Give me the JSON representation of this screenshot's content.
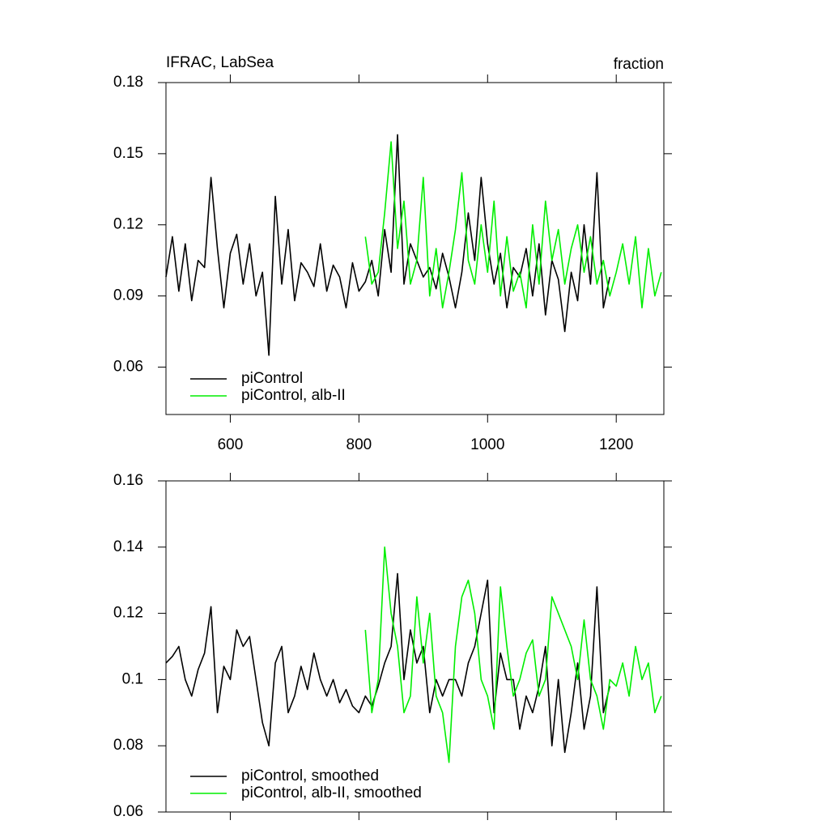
{
  "chart_data": [
    {
      "type": "line",
      "title": "IFRAC, LabSea",
      "units": "fraction",
      "xlim": [
        500,
        1274
      ],
      "xticks": [
        600,
        800,
        1000,
        1200
      ],
      "xtick_labels": true,
      "ylim": [
        0.04,
        0.18
      ],
      "yticks": [
        0.06,
        0.09,
        0.12,
        0.15,
        0.18
      ],
      "legend": "lower left",
      "series": [
        {
          "name": "piControl",
          "color": "#000000",
          "x": [
            500,
            510,
            520,
            530,
            540,
            550,
            560,
            570,
            580,
            590,
            600,
            610,
            620,
            630,
            640,
            650,
            660,
            670,
            680,
            690,
            700,
            710,
            720,
            730,
            740,
            750,
            760,
            770,
            780,
            790,
            800,
            810,
            820,
            830,
            840,
            850,
            860,
            870,
            880,
            890,
            900,
            910,
            920,
            930,
            940,
            950,
            960,
            970,
            980,
            990,
            1000,
            1010,
            1020,
            1030,
            1040,
            1050,
            1060,
            1070,
            1080,
            1090,
            1100,
            1110,
            1120,
            1130,
            1140,
            1150,
            1160,
            1170,
            1180,
            1190
          ],
          "values": [
            0.098,
            0.115,
            0.092,
            0.112,
            0.088,
            0.105,
            0.102,
            0.14,
            0.11,
            0.085,
            0.108,
            0.116,
            0.095,
            0.112,
            0.09,
            0.1,
            0.065,
            0.132,
            0.095,
            0.118,
            0.088,
            0.104,
            0.1,
            0.094,
            0.112,
            0.092,
            0.103,
            0.098,
            0.085,
            0.104,
            0.092,
            0.096,
            0.105,
            0.09,
            0.118,
            0.1,
            0.158,
            0.095,
            0.112,
            0.105,
            0.098,
            0.102,
            0.093,
            0.108,
            0.098,
            0.085,
            0.1,
            0.125,
            0.105,
            0.14,
            0.112,
            0.095,
            0.108,
            0.085,
            0.102,
            0.098,
            0.11,
            0.09,
            0.112,
            0.082,
            0.105,
            0.097,
            0.075,
            0.1,
            0.088,
            0.12,
            0.095,
            0.142,
            0.085,
            0.098
          ]
        },
        {
          "name": "piControl, alb-II",
          "color": "#00ee00",
          "x": [
            810,
            820,
            830,
            840,
            850,
            860,
            870,
            880,
            890,
            900,
            910,
            920,
            930,
            940,
            950,
            960,
            970,
            980,
            990,
            1000,
            1010,
            1020,
            1030,
            1040,
            1050,
            1060,
            1070,
            1080,
            1090,
            1100,
            1110,
            1120,
            1130,
            1140,
            1150,
            1160,
            1170,
            1180,
            1190,
            1200,
            1210,
            1220,
            1230,
            1240,
            1250,
            1260,
            1270
          ],
          "values": [
            0.115,
            0.095,
            0.1,
            0.125,
            0.155,
            0.11,
            0.13,
            0.095,
            0.105,
            0.14,
            0.09,
            0.11,
            0.085,
            0.1,
            0.118,
            0.142,
            0.105,
            0.095,
            0.12,
            0.1,
            0.13,
            0.09,
            0.115,
            0.092,
            0.1,
            0.085,
            0.12,
            0.095,
            0.13,
            0.105,
            0.118,
            0.095,
            0.11,
            0.12,
            0.1,
            0.115,
            0.095,
            0.105,
            0.09,
            0.1,
            0.112,
            0.095,
            0.115,
            0.085,
            0.11,
            0.09,
            0.1
          ]
        }
      ]
    },
    {
      "type": "line",
      "xlim": [
        500,
        1274
      ],
      "xticks": [
        600,
        800,
        1000,
        1200
      ],
      "xtick_labels": false,
      "ylim": [
        0.06,
        0.16
      ],
      "yticks": [
        0.06,
        0.08,
        0.1,
        0.12,
        0.14,
        0.16
      ],
      "legend": "lower left",
      "series": [
        {
          "name": "piControl, smoothed",
          "color": "#000000",
          "x": [
            500,
            510,
            520,
            530,
            540,
            550,
            560,
            570,
            580,
            590,
            600,
            610,
            620,
            630,
            640,
            650,
            660,
            670,
            680,
            690,
            700,
            710,
            720,
            730,
            740,
            750,
            760,
            770,
            780,
            790,
            800,
            810,
            820,
            830,
            840,
            850,
            860,
            870,
            880,
            890,
            900,
            910,
            920,
            930,
            940,
            950,
            960,
            970,
            980,
            990,
            1000,
            1010,
            1020,
            1030,
            1040,
            1050,
            1060,
            1070,
            1080,
            1090,
            1100,
            1110,
            1120,
            1130,
            1140,
            1150,
            1160,
            1170,
            1180,
            1190
          ],
          "values": [
            0.105,
            0.107,
            0.11,
            0.1,
            0.095,
            0.103,
            0.108,
            0.122,
            0.09,
            0.104,
            0.1,
            0.115,
            0.11,
            0.113,
            0.1,
            0.087,
            0.08,
            0.105,
            0.11,
            0.09,
            0.095,
            0.104,
            0.097,
            0.108,
            0.1,
            0.095,
            0.1,
            0.093,
            0.097,
            0.092,
            0.09,
            0.095,
            0.092,
            0.098,
            0.105,
            0.11,
            0.132,
            0.1,
            0.115,
            0.105,
            0.11,
            0.09,
            0.1,
            0.095,
            0.1,
            0.1,
            0.095,
            0.105,
            0.11,
            0.12,
            0.13,
            0.09,
            0.108,
            0.1,
            0.1,
            0.085,
            0.095,
            0.09,
            0.098,
            0.11,
            0.08,
            0.1,
            0.078,
            0.09,
            0.105,
            0.085,
            0.095,
            0.128,
            0.09,
            0.098
          ]
        },
        {
          "name": "piControl, alb-II, smoothed",
          "color": "#00ee00",
          "x": [
            810,
            820,
            830,
            840,
            850,
            860,
            870,
            880,
            890,
            900,
            910,
            920,
            930,
            940,
            950,
            960,
            970,
            980,
            990,
            1000,
            1010,
            1020,
            1030,
            1040,
            1050,
            1060,
            1070,
            1080,
            1090,
            1100,
            1110,
            1120,
            1130,
            1140,
            1150,
            1160,
            1170,
            1180,
            1190,
            1200,
            1210,
            1220,
            1230,
            1240,
            1250,
            1260,
            1270
          ],
          "values": [
            0.115,
            0.09,
            0.1,
            0.14,
            0.12,
            0.11,
            0.09,
            0.095,
            0.125,
            0.105,
            0.12,
            0.095,
            0.09,
            0.075,
            0.11,
            0.125,
            0.13,
            0.12,
            0.1,
            0.095,
            0.085,
            0.128,
            0.11,
            0.095,
            0.1,
            0.108,
            0.112,
            0.095,
            0.1,
            0.125,
            0.12,
            0.115,
            0.11,
            0.1,
            0.118,
            0.1,
            0.095,
            0.085,
            0.1,
            0.098,
            0.105,
            0.095,
            0.11,
            0.1,
            0.105,
            0.09,
            0.095
          ]
        }
      ]
    }
  ]
}
